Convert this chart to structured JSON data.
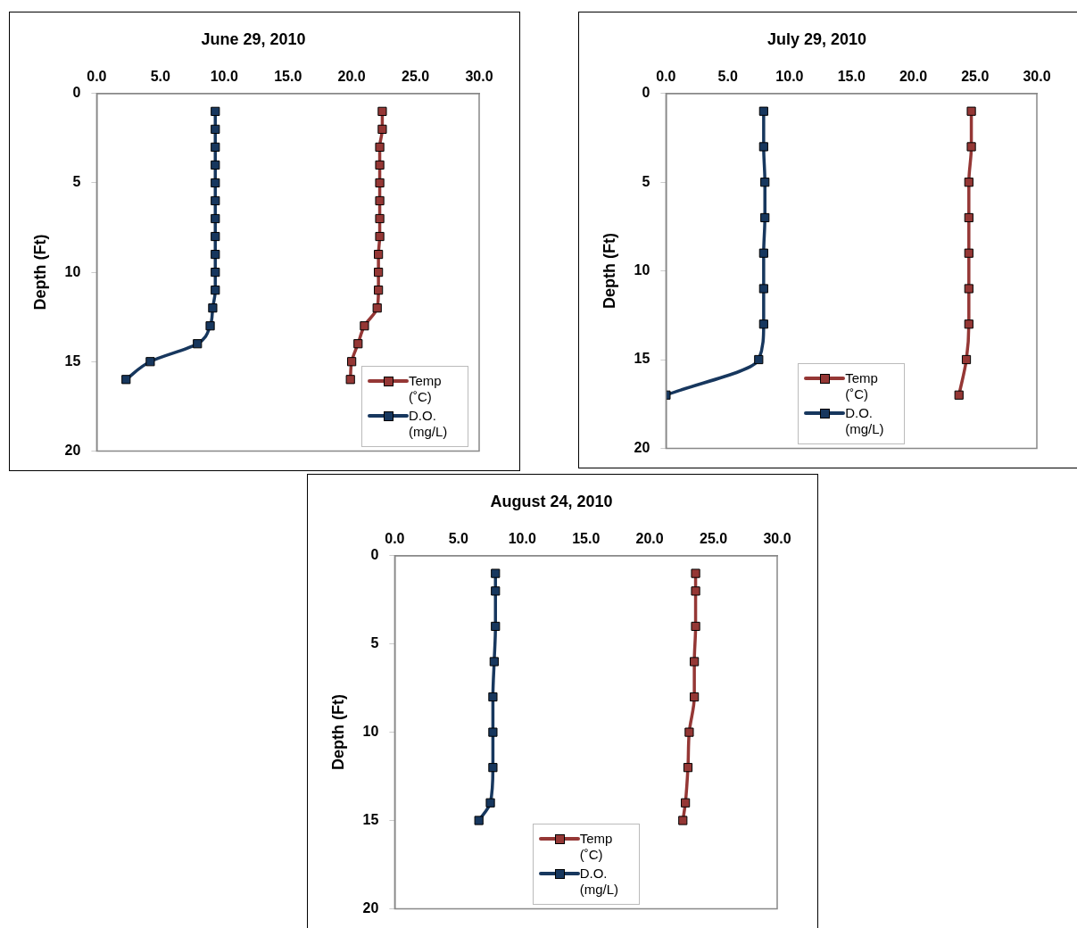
{
  "chart_data": [
    {
      "type": "line",
      "title": "June 29, 2010",
      "ylabel": "Depth (Ft)",
      "xlim": [
        0,
        30
      ],
      "xticks": [
        {
          "value": 0,
          "label": "0.0"
        },
        {
          "value": 5,
          "label": "5.0"
        },
        {
          "value": 10,
          "label": "10.0"
        },
        {
          "value": 15,
          "label": "15.0"
        },
        {
          "value": 20,
          "label": "20.0"
        },
        {
          "value": 25,
          "label": "25.0"
        },
        {
          "value": 30,
          "label": "30.0"
        }
      ],
      "ylim": [
        20,
        0
      ],
      "yticks": [
        0,
        5,
        10,
        15,
        20
      ],
      "grid": false,
      "legend": "bottom right",
      "marker": "square",
      "line_style": "solid",
      "series": [
        {
          "name": "Temp (˚C)",
          "color": "#953735",
          "x": [
            22.4,
            22.4,
            22.2,
            22.2,
            22.2,
            22.2,
            22.2,
            22.2,
            22.1,
            22.1,
            22.1,
            22.0,
            21.0,
            20.5,
            20.0,
            19.9
          ],
          "values": [
            1,
            2,
            3,
            4,
            5,
            6,
            7,
            8,
            9,
            10,
            11,
            12,
            13,
            14,
            15,
            16
          ]
        },
        {
          "name": "D.O. (mg/L)",
          "color": "#17375e",
          "x": [
            9.3,
            9.3,
            9.3,
            9.3,
            9.3,
            9.3,
            9.3,
            9.3,
            9.3,
            9.3,
            9.3,
            9.1,
            8.9,
            7.9,
            4.2,
            2.3
          ],
          "values": [
            1,
            2,
            3,
            4,
            5,
            6,
            7,
            8,
            9,
            10,
            11,
            12,
            13,
            14,
            15,
            16
          ]
        }
      ]
    },
    {
      "type": "line",
      "title": "July 29, 2010",
      "ylabel": "Depth (Ft)",
      "xlim": [
        0,
        30
      ],
      "xticks": [
        {
          "value": 0,
          "label": "0.0"
        },
        {
          "value": 5,
          "label": "5.0"
        },
        {
          "value": 10,
          "label": "10.0"
        },
        {
          "value": 15,
          "label": "15.0"
        },
        {
          "value": 20,
          "label": "20.0"
        },
        {
          "value": 25,
          "label": "25.0"
        },
        {
          "value": 30,
          "label": "30.0"
        }
      ],
      "ylim": [
        20,
        0
      ],
      "yticks": [
        0,
        5,
        10,
        15,
        20
      ],
      "grid": false,
      "legend": "bottom",
      "marker": "square",
      "line_style": "solid",
      "series": [
        {
          "name": "Temp (˚C)",
          "color": "#953735",
          "x": [
            24.7,
            24.7,
            24.5,
            24.5,
            24.5,
            24.5,
            24.5,
            24.3,
            23.7
          ],
          "values": [
            1,
            3,
            5,
            7,
            9,
            11,
            13,
            15,
            17
          ]
        },
        {
          "name": "D.O. (mg/L)",
          "color": "#17375e",
          "x": [
            7.9,
            7.9,
            8.0,
            8.0,
            7.9,
            7.9,
            7.9,
            7.5,
            0.0
          ],
          "values": [
            1,
            3,
            5,
            7,
            9,
            11,
            13,
            15,
            17
          ]
        }
      ]
    },
    {
      "type": "line",
      "title": "August 24, 2010",
      "ylabel": "Depth (Ft)",
      "xlim": [
        0,
        30
      ],
      "xticks": [
        {
          "value": 0,
          "label": "0.0"
        },
        {
          "value": 5,
          "label": "5.0"
        },
        {
          "value": 10,
          "label": "10.0"
        },
        {
          "value": 15,
          "label": "15.0"
        },
        {
          "value": 20,
          "label": "20.0"
        },
        {
          "value": 25,
          "label": "25.0"
        },
        {
          "value": 30,
          "label": "30.0"
        }
      ],
      "ylim": [
        20,
        0
      ],
      "yticks": [
        0,
        5,
        10,
        15,
        20
      ],
      "grid": false,
      "legend": "bottom",
      "marker": "square",
      "line_style": "solid",
      "series": [
        {
          "name": "Temp (˚C)",
          "color": "#953735",
          "x": [
            23.6,
            23.6,
            23.6,
            23.5,
            23.5,
            23.1,
            23.0,
            22.8,
            22.6
          ],
          "values": [
            1,
            2,
            4,
            6,
            8,
            10,
            12,
            14,
            15
          ]
        },
        {
          "name": "D.O. (mg/L)",
          "color": "#17375e",
          "x": [
            7.9,
            7.9,
            7.9,
            7.8,
            7.7,
            7.7,
            7.7,
            7.5,
            6.6
          ],
          "values": [
            1,
            2,
            4,
            6,
            8,
            10,
            12,
            14,
            15
          ]
        }
      ]
    }
  ]
}
